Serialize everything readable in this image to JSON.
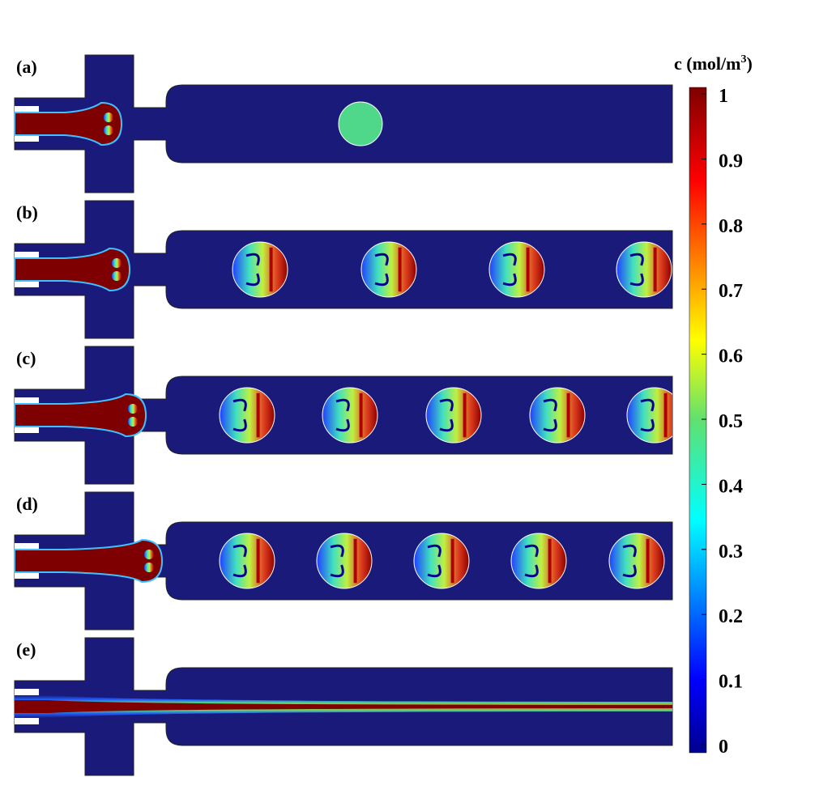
{
  "figure": {
    "panels": [
      {
        "label": "(a)"
      },
      {
        "label": "(b)"
      },
      {
        "label": "(c)"
      },
      {
        "label": "(d)"
      },
      {
        "label": "(e)"
      }
    ],
    "colorbar": {
      "title_main": "c (mol/m",
      "title_sup": "3",
      "title_end": ")",
      "ticks": [
        "1",
        "0.9",
        "0.8",
        "0.7",
        "0.6",
        "0.5",
        "0.4",
        "0.3",
        "0.2",
        "0.1",
        "0"
      ],
      "min": 0,
      "max": 1,
      "colormap": "jet"
    },
    "colors": {
      "background_fluid": "#1a1a7a",
      "high": "#7f0000",
      "mid": "#4fd88a",
      "low": "#00008f"
    }
  }
}
